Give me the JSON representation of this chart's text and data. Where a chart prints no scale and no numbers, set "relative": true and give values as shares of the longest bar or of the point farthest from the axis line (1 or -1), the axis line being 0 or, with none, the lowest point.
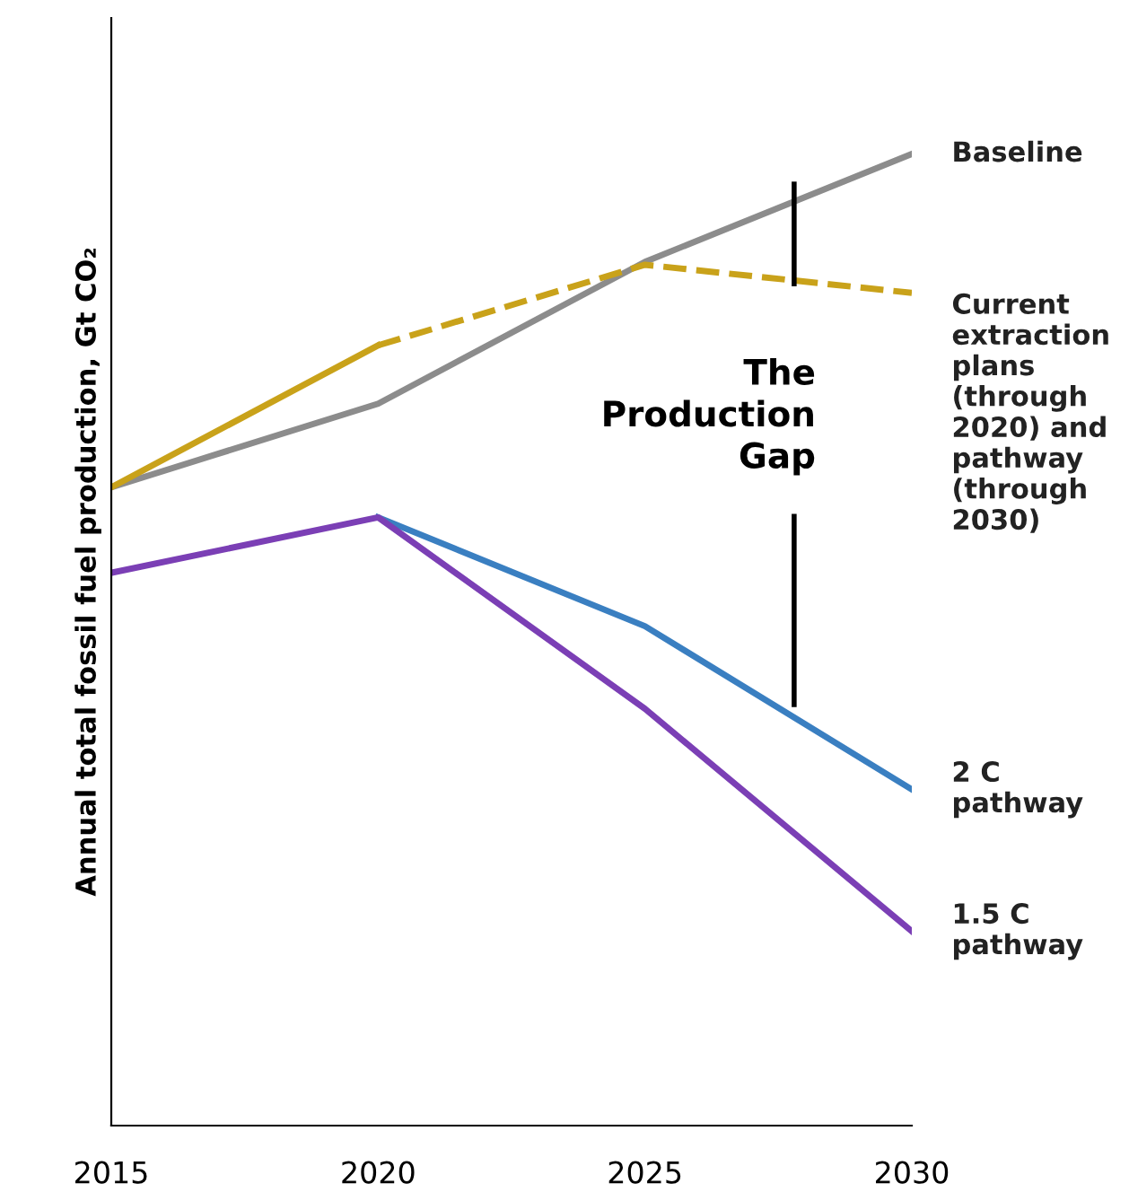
{
  "chart_data": {
    "type": "line",
    "relative": true,
    "ylabel": "Annual total fossil fuel production, Gt CO₂",
    "x": [
      2015,
      2020,
      2025,
      2030
    ],
    "xlim": [
      2015,
      2030
    ],
    "xticks": [
      2015,
      2020,
      2025,
      2030
    ],
    "tick_labels": "x",
    "legend": false,
    "marker": "none",
    "annotations": [
      "The\nProduction\nGap"
    ],
    "series": [
      {
        "name": "Baseline",
        "color": "#8c8c8c",
        "values": [
          0.657,
          0.743,
          0.889,
          1
        ]
      },
      {
        "color": "#c9a21a",
        "line_style": "solid",
        "values": [
          0.657,
          0.803,
          null,
          null
        ]
      },
      {
        "name": "Current\nextraction\nplans\n(through\n2020) and\npathway\n(through\n2030)",
        "color": "#c9a21a",
        "line_style": "dashed",
        "values": [
          null,
          0.803,
          0.886,
          0.857
        ]
      },
      {
        "name": "2 C\npathway",
        "color": "#3a7fc1",
        "values": [
          null,
          0.626,
          0.514,
          0.346
        ]
      },
      {
        "name": "1.5 C\npathway",
        "color": "#7b3fb5",
        "values": [
          0.569,
          0.626,
          0.429,
          0.2
        ]
      }
    ]
  }
}
